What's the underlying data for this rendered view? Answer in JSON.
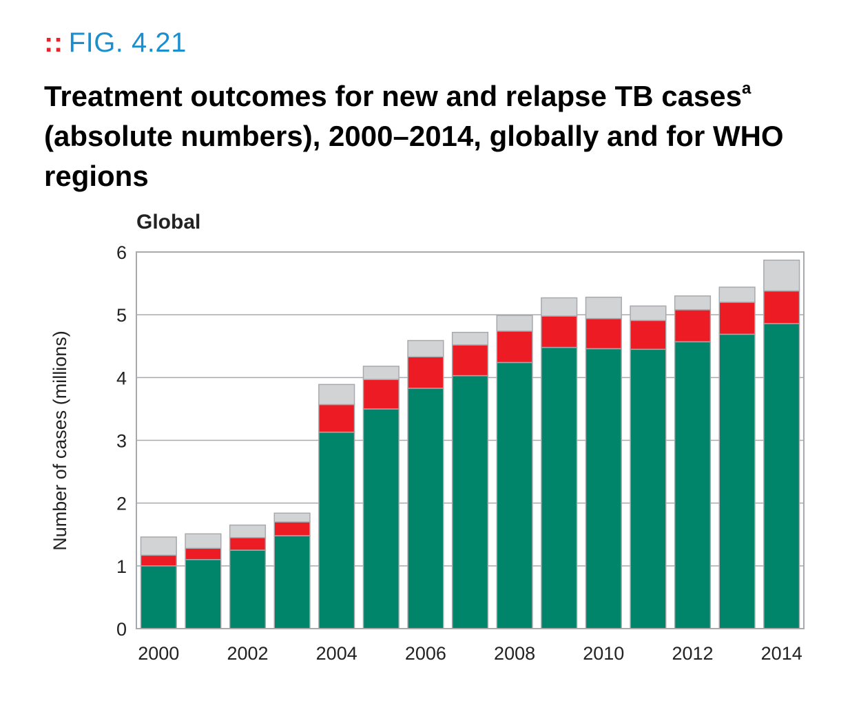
{
  "figure": {
    "label": "FIG. 4.21",
    "title": "Treatment outcomes for new and relapse TB cases",
    "title_footnote": "a",
    "title_line2": "(absolute numbers), 2000–2014, globally and for WHO regions"
  },
  "colors": {
    "accent_blue": "#1a8fd0",
    "marker_red": "#e3262c",
    "treatment_success": "#00846a",
    "red_segment": "#ed1c24",
    "gray_segment": "#d1d3d4",
    "bar_outline": "#a7a9ac"
  },
  "chart_data": {
    "type": "bar",
    "stacked": true,
    "title": "Global",
    "xlabel": "",
    "ylabel": "Number of cases (millions)",
    "ylim": [
      0,
      6
    ],
    "yticks": [
      0,
      1,
      2,
      3,
      4,
      5,
      6
    ],
    "x": [
      2000,
      2001,
      2002,
      2003,
      2004,
      2005,
      2006,
      2007,
      2008,
      2009,
      2010,
      2011,
      2012,
      2013,
      2014
    ],
    "xticklabels": [
      "2000",
      "2002",
      "2004",
      "2006",
      "2008",
      "2010",
      "2012",
      "2014"
    ],
    "grid": true,
    "legend": "none",
    "series": [
      {
        "color": "#00846a",
        "values": [
          1.0,
          1.1,
          1.25,
          1.48,
          3.13,
          3.5,
          3.83,
          4.03,
          4.24,
          4.48,
          4.46,
          4.45,
          4.57,
          4.69,
          4.86
        ]
      },
      {
        "color": "#ed1c24",
        "values": [
          0.17,
          0.18,
          0.2,
          0.22,
          0.44,
          0.47,
          0.5,
          0.49,
          0.5,
          0.5,
          0.48,
          0.46,
          0.51,
          0.51,
          0.52
        ]
      },
      {
        "color": "#d1d3d4",
        "values": [
          0.29,
          0.23,
          0.2,
          0.14,
          0.32,
          0.21,
          0.26,
          0.2,
          0.25,
          0.29,
          0.34,
          0.23,
          0.22,
          0.24,
          0.49
        ]
      }
    ]
  }
}
